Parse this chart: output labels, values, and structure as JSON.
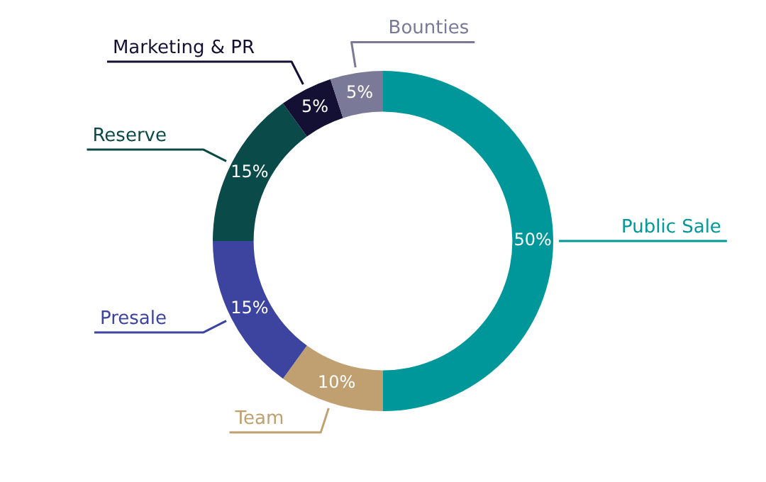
{
  "chart_data": {
    "type": "donut",
    "categories": [
      "Public Sale",
      "Team",
      "Presale",
      "Reserve",
      "Marketing & PR",
      "Bounties"
    ],
    "values": [
      50,
      10,
      15,
      15,
      5,
      5
    ],
    "value_labels": [
      "50%",
      "10%",
      "15%",
      "15%",
      "5%",
      "5%"
    ],
    "colors": [
      "#00979a",
      "#c0a070",
      "#3c44a0",
      "#0a4a48",
      "#141033",
      "#7a7a98"
    ],
    "legend": false
  }
}
